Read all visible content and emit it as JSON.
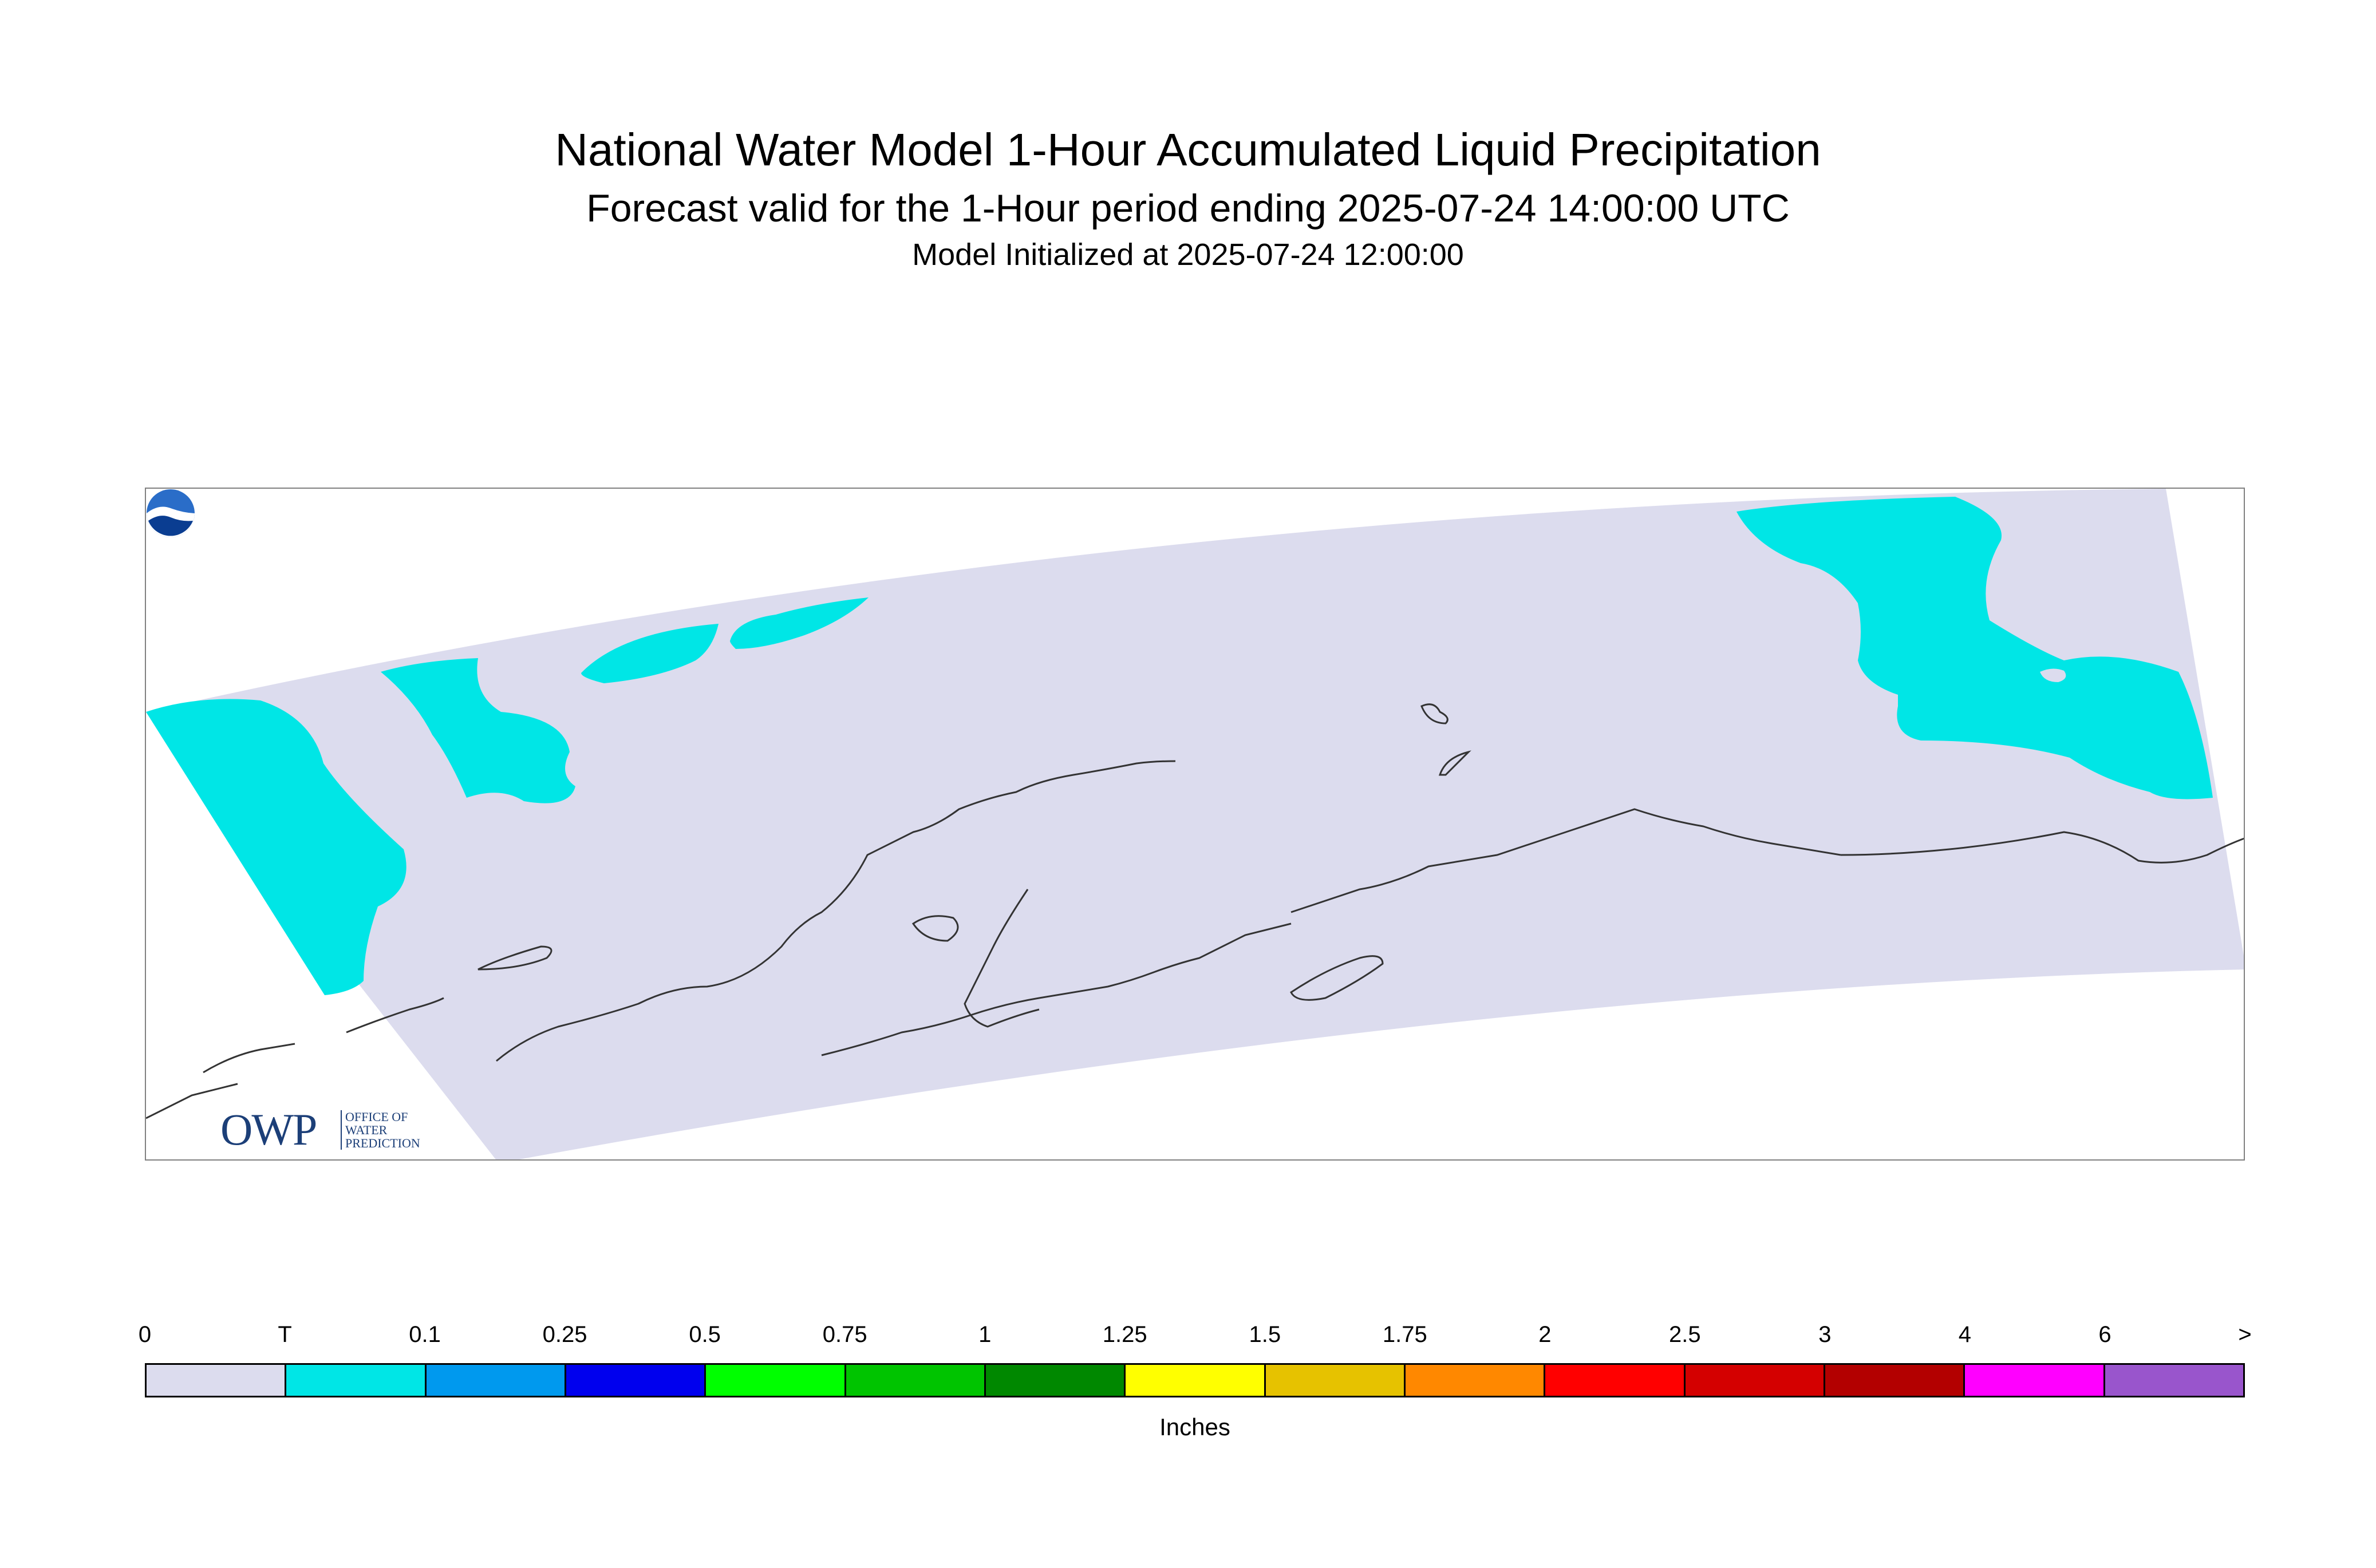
{
  "title": {
    "main": "National Water Model 1-Hour Accumulated Liquid Precipitation",
    "sub": "Forecast valid for the 1-Hour period ending 2025-07-24 14:00:00 UTC",
    "init": "Model Initialized at 2025-07-24 12:00:00"
  },
  "map": {
    "domain_color": "#dcdcee",
    "outside_color": "#ffffff",
    "precip_color": "#00e6e6",
    "coast_color": "#333333",
    "icons": [
      "owp-logo",
      "noaa-logo"
    ]
  },
  "owp_logo": {
    "letters": "OWP",
    "line1": "OFFICE OF",
    "line2": "WATER",
    "line3": "PREDICTION"
  },
  "legend": {
    "ticks": [
      "0",
      "T",
      "0.1",
      "0.25",
      "0.5",
      "0.75",
      "1",
      "1.25",
      "1.5",
      "1.75",
      "2",
      "2.5",
      "3",
      "4",
      "6",
      ">"
    ],
    "colors": [
      "#dcdcee",
      "#00e6e6",
      "#0099ee",
      "#0000ee",
      "#00ff00",
      "#00c400",
      "#008800",
      "#ffff00",
      "#e6c200",
      "#ff8800",
      "#ff0000",
      "#d40000",
      "#b30000",
      "#ff00ff",
      "#9955cc"
    ],
    "unit": "Inches"
  }
}
